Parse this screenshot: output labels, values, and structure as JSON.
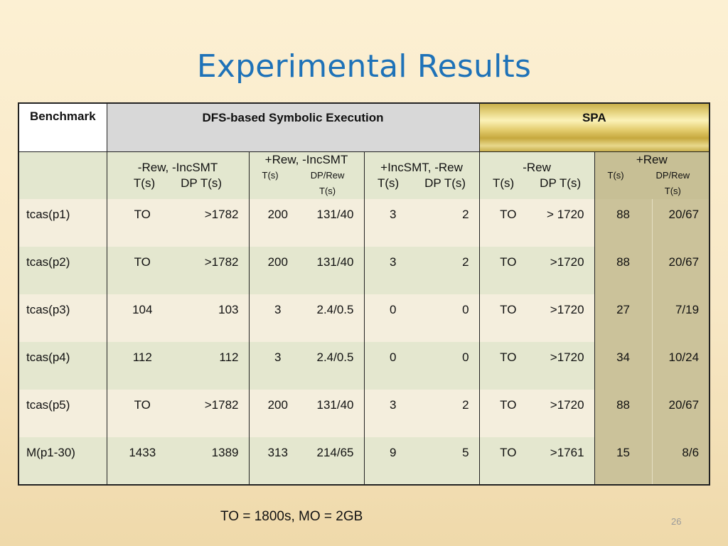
{
  "title": "Experimental Results",
  "table": {
    "benchmark_header": "Benchmark",
    "dfs_header": "DFS-based Symbolic Execution",
    "spa_header": "SPA",
    "groups": [
      {
        "name": "-Rew, -IncSMT",
        "col1": "T(s)",
        "col2": "DP T(s)",
        "small": false
      },
      {
        "name": "+Rew, -IncSMT",
        "col1": "T(s)",
        "col2": "DP/Rew T(s)",
        "small": true
      },
      {
        "name": "+IncSMT, -Rew",
        "col1": "T(s)",
        "col2": "DP T(s)",
        "small": false
      },
      {
        "name": "-Rew",
        "col1": "T(s)",
        "col2": "DP T(s)",
        "small": false
      },
      {
        "name": "+Rew",
        "col1": "T(s)",
        "col2": "DP/Rew T(s)",
        "small": true
      }
    ],
    "rows": [
      {
        "label": "tcas(p1)",
        "values": [
          "TO",
          ">1782",
          "200",
          "131/40",
          "3",
          "2",
          "TO",
          "> 1720",
          "88",
          "20/67"
        ]
      },
      {
        "label": "tcas(p2)",
        "values": [
          "TO",
          ">1782",
          "200",
          "131/40",
          "3",
          "2",
          "TO",
          ">1720",
          "88",
          "20/67"
        ]
      },
      {
        "label": "tcas(p3)",
        "values": [
          "104",
          "103",
          "3",
          "2.4/0.5",
          "0",
          "0",
          "TO",
          ">1720",
          "27",
          "7/19"
        ]
      },
      {
        "label": "tcas(p4)",
        "values": [
          "112",
          "112",
          "3",
          "2.4/0.5",
          "0",
          "0",
          "TO",
          ">1720",
          "34",
          "10/24"
        ]
      },
      {
        "label": "tcas(p5)",
        "values": [
          "TO",
          ">1782",
          "200",
          "131/40",
          "3",
          "2",
          "TO",
          ">1720",
          "88",
          "20/67"
        ]
      },
      {
        "label": "M(p1-30)",
        "values": [
          "1433",
          "1389",
          "313",
          "214/65",
          "9",
          "5",
          "TO",
          ">1761",
          "15",
          "8/6"
        ]
      }
    ]
  },
  "footnote": "TO = 1800s, MO = 2GB",
  "page_number": "26"
}
